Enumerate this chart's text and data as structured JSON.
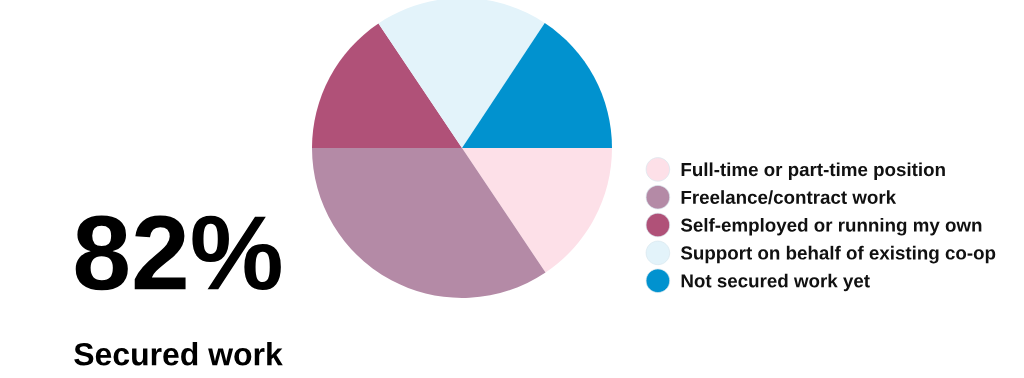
{
  "chart_data": {
    "type": "pie",
    "categories": [
      "Full-time or part-time position",
      "Freelance/contract work",
      "Self-employed or running my own",
      "Support on behalf of existing co-op",
      "Not secured work yet"
    ],
    "values": [
      15.6,
      34.4,
      15.6,
      18.7,
      15.7
    ],
    "colors": [
      "#fde0e8",
      "#b48aa6",
      "#b05178",
      "#e3f3fa",
      "#0192cf"
    ],
    "legend": "right",
    "annotations": [
      "82%",
      "Secured work"
    ]
  }
}
